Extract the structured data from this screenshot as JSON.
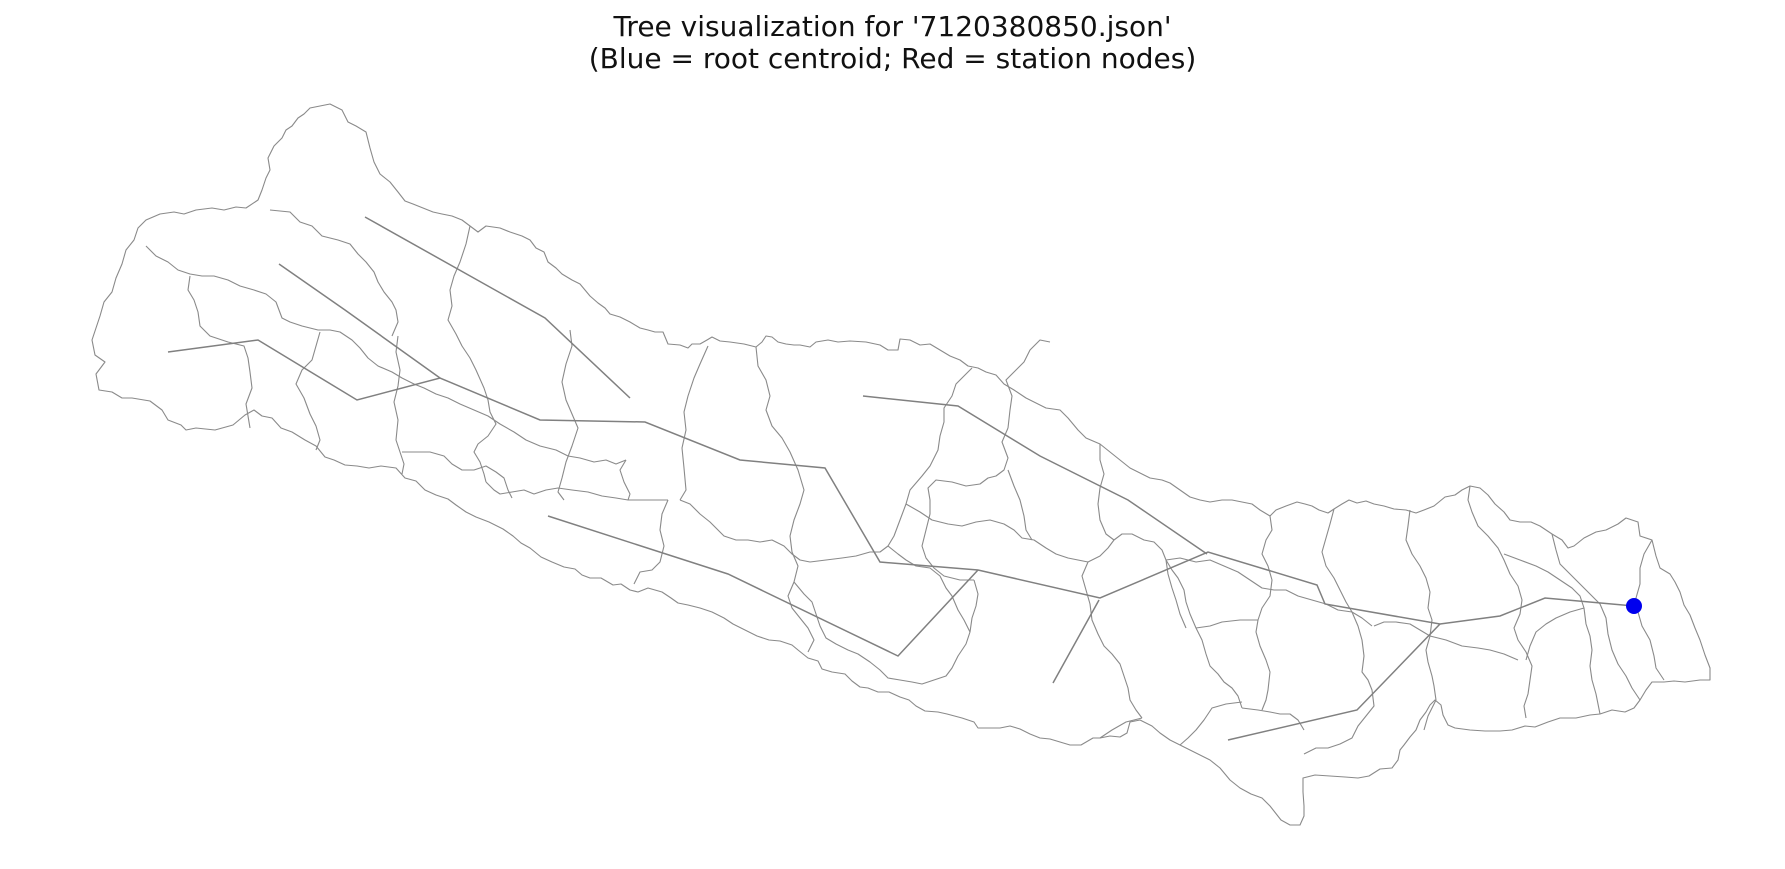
{
  "title": {
    "line1": "Tree visualization for '7120380850.json'",
    "line2": "(Blue = root centroid; Red = station nodes)"
  },
  "legend_colors": {
    "root": "#0000ee",
    "station": "#ff0000",
    "edge": "#808080",
    "boundary": "#8a8a8a"
  }
}
